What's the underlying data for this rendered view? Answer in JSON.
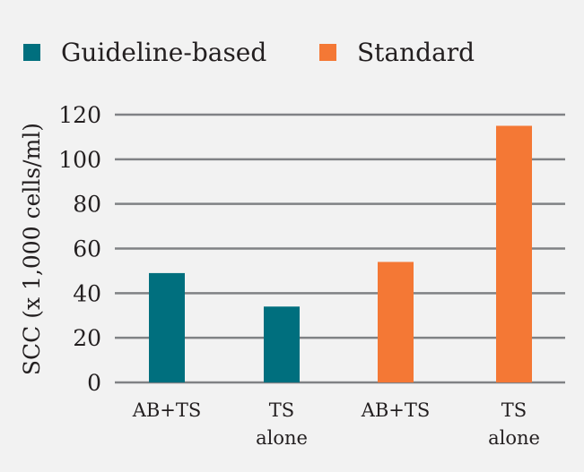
{
  "chart_data": {
    "type": "bar",
    "title": "",
    "xlabel": "",
    "ylabel": "SCC (x 1,000 cells/ml)",
    "ylim": [
      0,
      120
    ],
    "yticks": [
      0,
      20,
      40,
      60,
      80,
      100,
      120
    ],
    "grid": true,
    "legend_position": "top-left",
    "legend": [
      {
        "name": "Guideline-based",
        "color": "#006f7e"
      },
      {
        "name": "Standard",
        "color": "#f47835"
      }
    ],
    "bars": [
      {
        "label": "AB+TS",
        "value": 49,
        "group": "Guideline-based",
        "color": "#006f7e"
      },
      {
        "label": "TS alone",
        "value": 34,
        "group": "Guideline-based",
        "color": "#006f7e"
      },
      {
        "label": "AB+TS",
        "value": 54,
        "group": "Standard",
        "color": "#f47835"
      },
      {
        "label": "TS alone",
        "value": 115,
        "group": "Standard",
        "color": "#f47835"
      }
    ]
  }
}
